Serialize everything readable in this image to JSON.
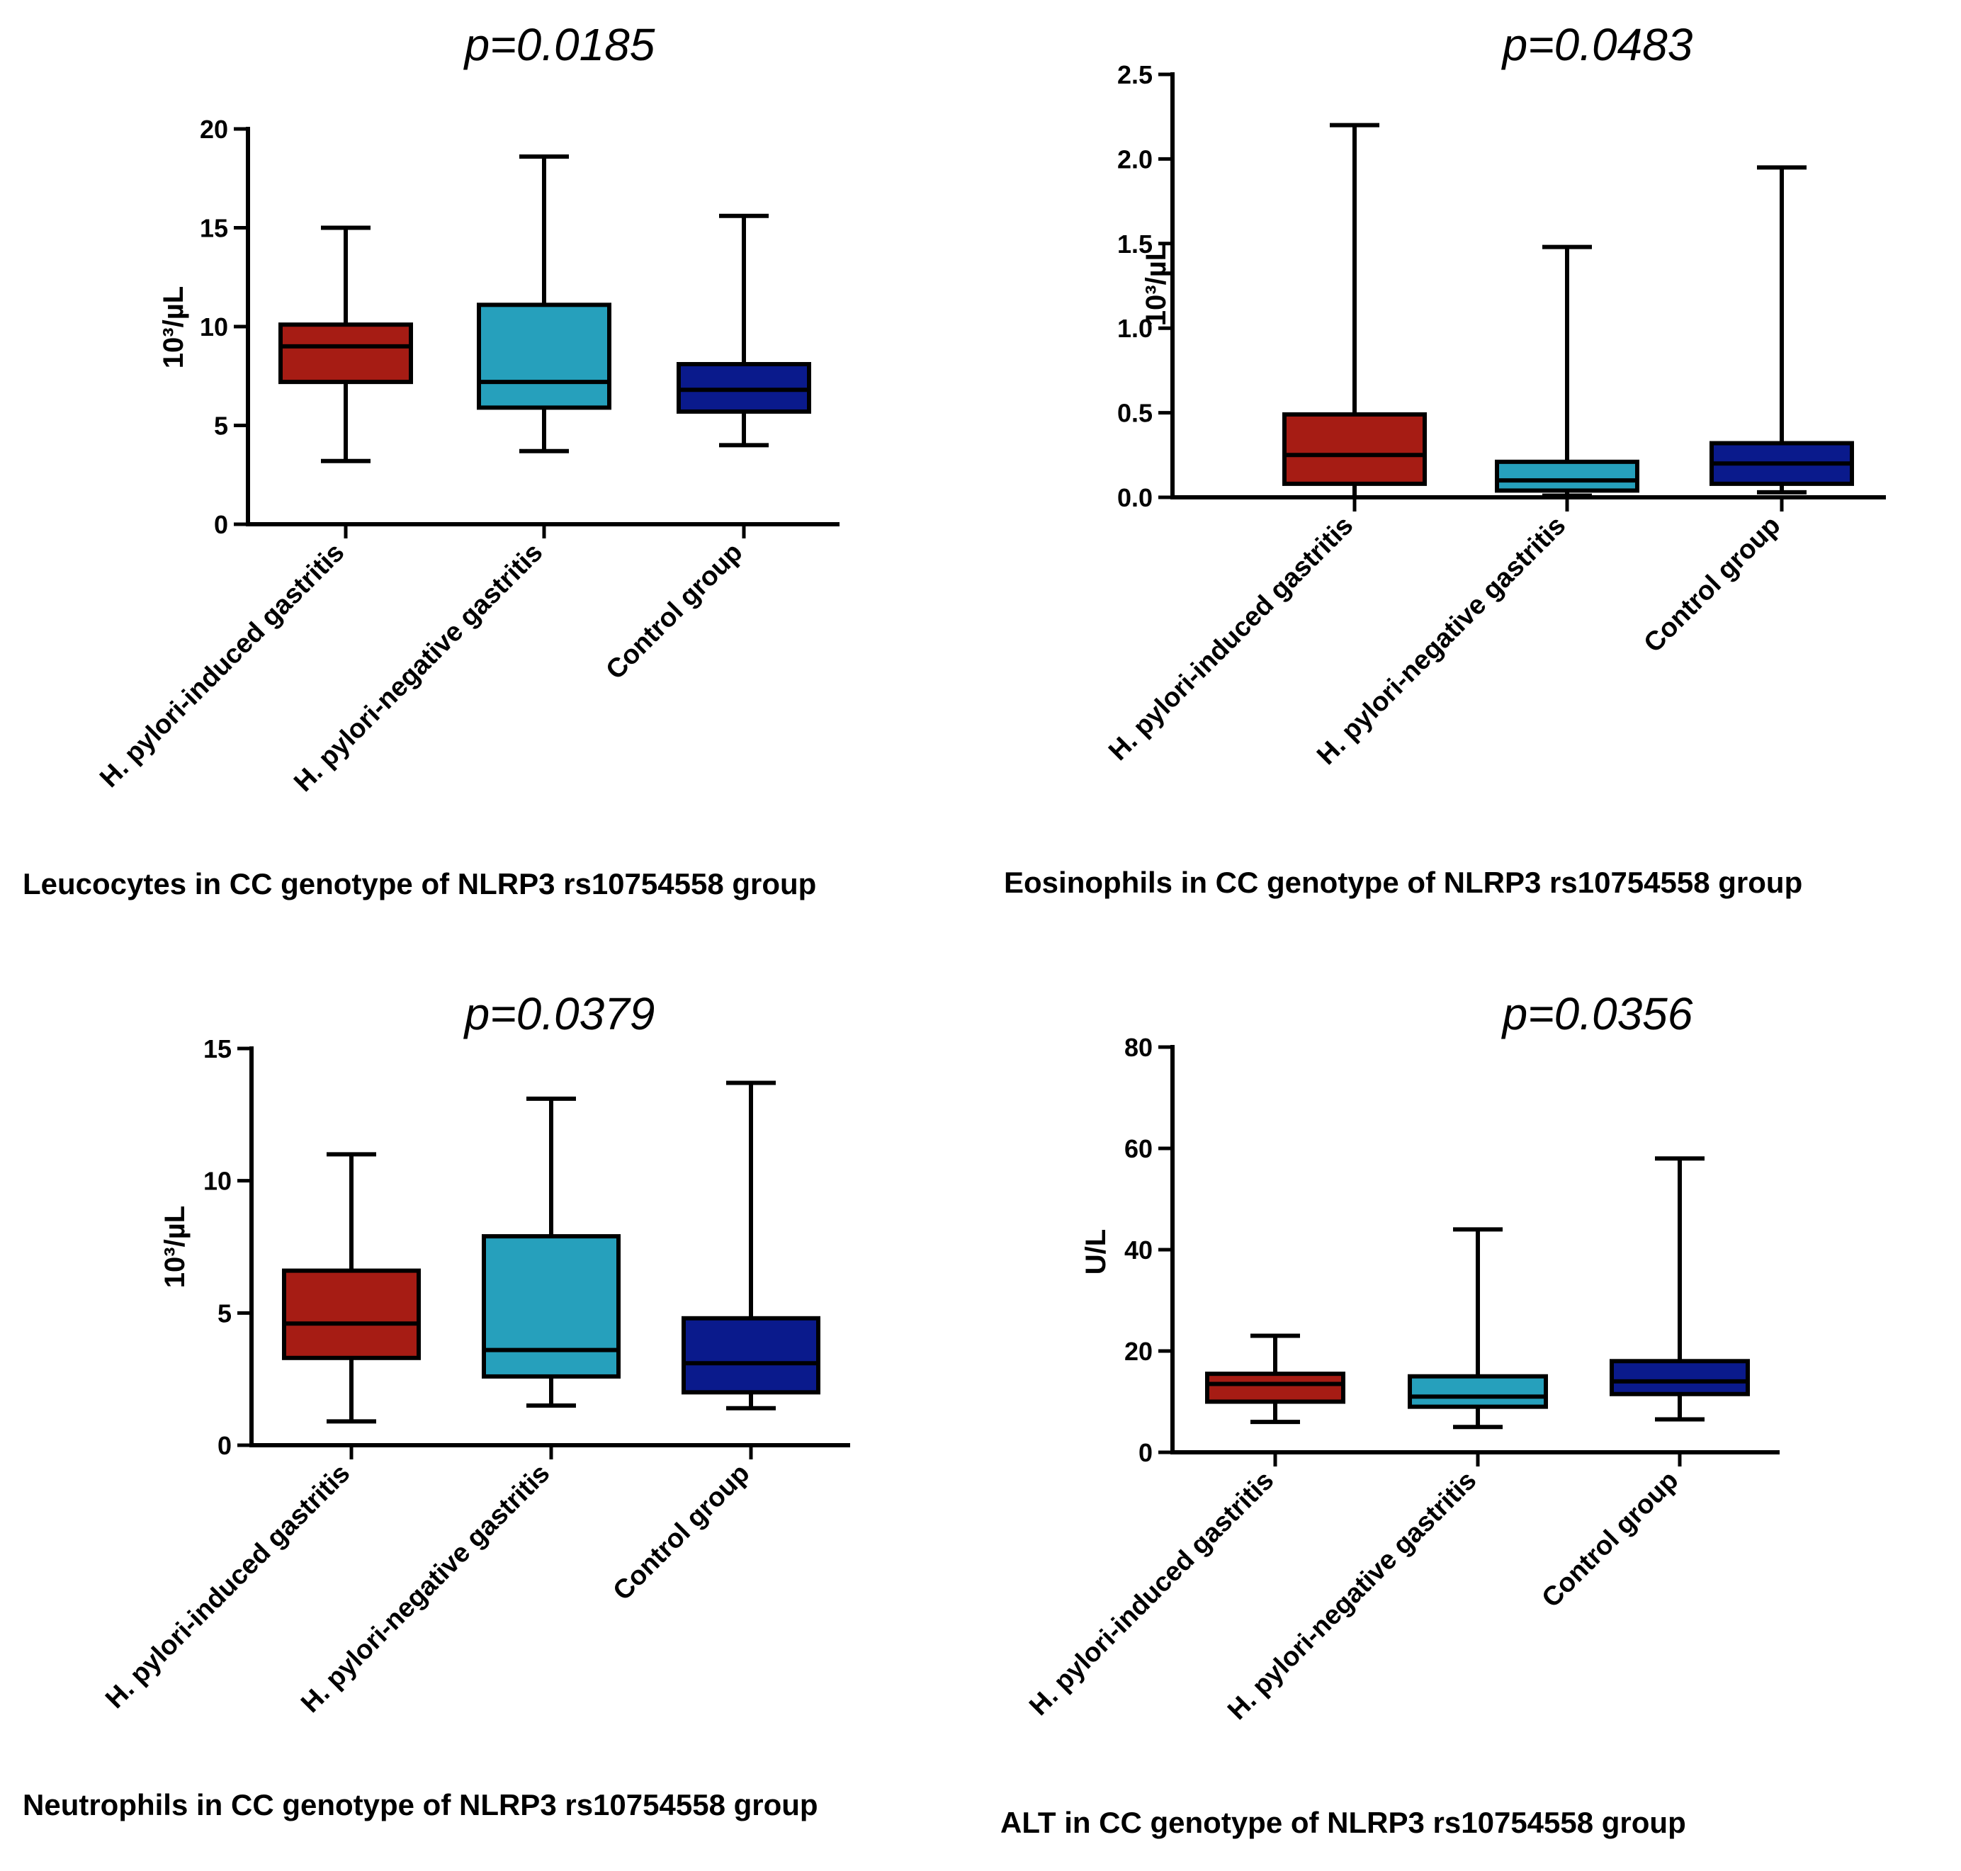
{
  "chart_data": [
    {
      "type": "box",
      "title": "p=0.0185",
      "caption": "Leucocytes in CC genotype of NLRP3 rs10754558 group",
      "ylabel": "10³/µL",
      "ylim": [
        0,
        20
      ],
      "yticks": [
        "0",
        "5",
        "10",
        "15",
        "20"
      ],
      "categories": [
        "H. pylori-induced gastritis",
        "H. pylori-negative gastritis",
        "Control group"
      ],
      "colors": [
        "#A61C14",
        "#26A0BC",
        "#0A1A8C"
      ],
      "boxes": [
        {
          "min": 3.2,
          "q1": 7.2,
          "median": 9.0,
          "q3": 10.1,
          "max": 15.0
        },
        {
          "min": 3.7,
          "q1": 5.9,
          "median": 7.2,
          "q3": 11.1,
          "max": 18.6
        },
        {
          "min": 4.0,
          "q1": 5.7,
          "median": 6.8,
          "q3": 8.1,
          "max": 15.6
        }
      ]
    },
    {
      "type": "box",
      "title": "p=0.0483",
      "caption": "Eosinophils in CC genotype of NLRP3 rs10754558 group",
      "ylabel": "10³/µL",
      "ylim": [
        0,
        2.5
      ],
      "yticks": [
        "0.0",
        "0.5",
        "1.0",
        "1.5",
        "2.0",
        "2.5"
      ],
      "categories": [
        "H. pylori-induced gastritis",
        "H. pylori-negative gastritis",
        "Control group"
      ],
      "colors": [
        "#A61C14",
        "#26A0BC",
        "#0A1A8C"
      ],
      "boxes": [
        {
          "min": 0.0,
          "q1": 0.08,
          "median": 0.25,
          "q3": 0.49,
          "max": 2.2
        },
        {
          "min": 0.01,
          "q1": 0.04,
          "median": 0.1,
          "q3": 0.21,
          "max": 1.48
        },
        {
          "min": 0.03,
          "q1": 0.08,
          "median": 0.2,
          "q3": 0.32,
          "max": 1.95
        }
      ]
    },
    {
      "type": "box",
      "title": "p=0.0379",
      "caption": "Neutrophils in CC genotype of NLRP3 rs10754558 group",
      "ylabel": "10³/µL",
      "ylim": [
        0,
        15
      ],
      "yticks": [
        "0",
        "5",
        "10",
        "15"
      ],
      "categories": [
        "H. pylori-induced gastritis",
        "H. pylori-negative gastritis",
        "Control group"
      ],
      "colors": [
        "#A61C14",
        "#26A0BC",
        "#0A1A8C"
      ],
      "boxes": [
        {
          "min": 0.9,
          "q1": 3.3,
          "median": 4.6,
          "q3": 6.6,
          "max": 11.0
        },
        {
          "min": 1.5,
          "q1": 2.6,
          "median": 3.6,
          "q3": 7.9,
          "max": 13.1
        },
        {
          "min": 1.4,
          "q1": 2.0,
          "median": 3.1,
          "q3": 4.8,
          "max": 13.7
        }
      ]
    },
    {
      "type": "box",
      "title": "p=0.0356",
      "caption": "ALT in CC genotype of NLRP3 rs10754558 group",
      "ylabel": "U/L",
      "ylim": [
        0,
        80
      ],
      "yticks": [
        "0",
        "20",
        "40",
        "60",
        "80"
      ],
      "categories": [
        "H. pylori-induced gastritis",
        "H. pylori-negative gastritis",
        "Control group"
      ],
      "colors": [
        "#A61C14",
        "#26A0BC",
        "#0A1A8C"
      ],
      "boxes": [
        {
          "min": 6,
          "q1": 10,
          "median": 13.5,
          "q3": 15.5,
          "max": 23
        },
        {
          "min": 5,
          "q1": 9,
          "median": 11,
          "q3": 15,
          "max": 44
        },
        {
          "min": 6.5,
          "q1": 11.5,
          "median": 14,
          "q3": 18,
          "max": 58
        }
      ]
    }
  ]
}
